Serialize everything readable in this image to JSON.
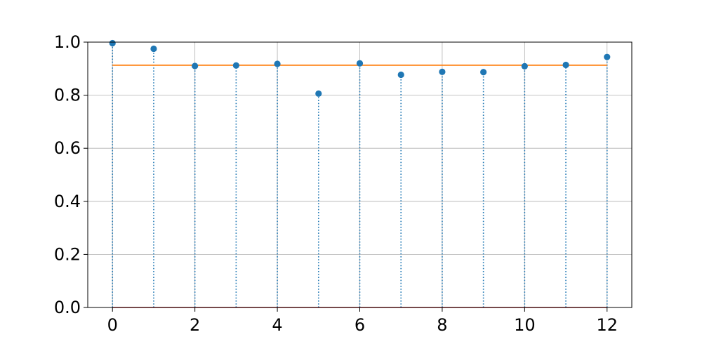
{
  "chart_data": {
    "type": "stem",
    "x": [
      0,
      1,
      2,
      3,
      4,
      5,
      6,
      7,
      8,
      9,
      10,
      11,
      12
    ],
    "y": [
      0.996,
      0.975,
      0.91,
      0.912,
      0.918,
      0.806,
      0.92,
      0.877,
      0.888,
      0.887,
      0.909,
      0.914,
      0.944
    ],
    "mean_line": 0.913,
    "baseline": 0,
    "title": "",
    "xlabel": "",
    "ylabel": "",
    "xlim": [
      -0.6,
      12.6
    ],
    "ylim": [
      0.0,
      1.0
    ],
    "x_ticks": [
      {
        "value": 0,
        "label": "0"
      },
      {
        "value": 2,
        "label": "2"
      },
      {
        "value": 4,
        "label": "4"
      },
      {
        "value": 6,
        "label": "6"
      },
      {
        "value": 8,
        "label": "8"
      },
      {
        "value": 10,
        "label": "10"
      },
      {
        "value": 12,
        "label": "12"
      }
    ],
    "y_ticks": [
      {
        "value": 0.0,
        "label": "0.0"
      },
      {
        "value": 0.2,
        "label": "0.2"
      },
      {
        "value": 0.4,
        "label": "0.4"
      },
      {
        "value": 0.6,
        "label": "0.6"
      },
      {
        "value": 0.8,
        "label": "0.8"
      },
      {
        "value": 1.0,
        "label": "1.0"
      }
    ],
    "grid": true,
    "colors": {
      "markers": "#1f77b4",
      "mean_line": "#ff7f0e",
      "baseline": "#d62728",
      "grid": "#b0b0b0"
    }
  }
}
